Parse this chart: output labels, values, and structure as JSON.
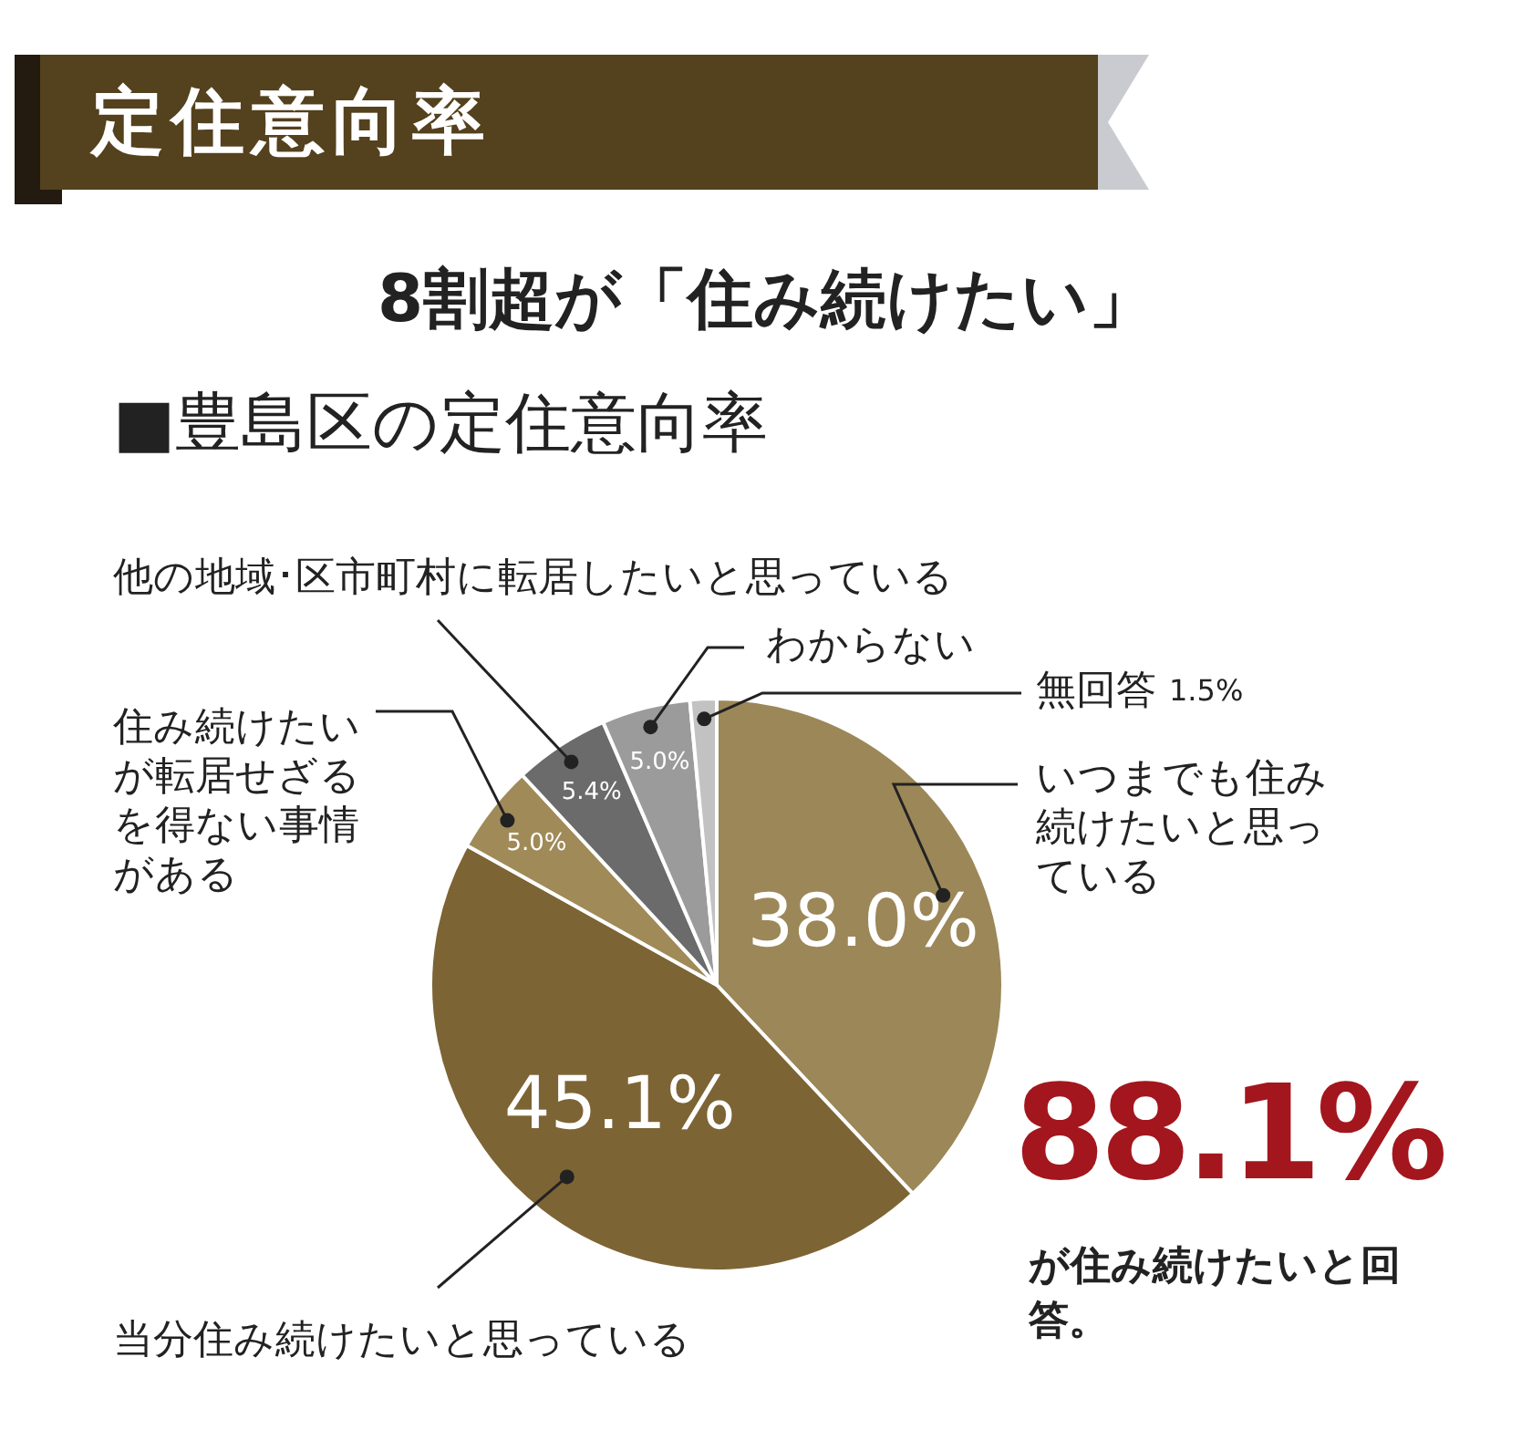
{
  "chart_data": {
    "type": "pie",
    "title": "定住意向率",
    "subtitle": "8割超が「住み続けたい」",
    "annotations": [
      "■豊島区の定住意向率",
      "88.1%",
      "が住み続けたいと回答。"
    ],
    "categories": [
      "いつまでも住み続けたいと思っている",
      "当分住み続けたいと思っている",
      "住み続けたいが転居せざるを得ない事情がある",
      "他の地域･区市町村に転居したいと思っている",
      "わからない",
      "無回答"
    ],
    "values": [
      38.0,
      45.1,
      5.0,
      5.4,
      5.0,
      1.5
    ],
    "value_labels": [
      "38.0%",
      "45.1%",
      "5.0%",
      "5.4%",
      "5.0%",
      "1.5%"
    ],
    "colors": [
      "#9c8758",
      "#7d6434",
      "#a08a58",
      "#6b6b6b",
      "#9b9b9b",
      "#c2c2c2"
    ],
    "legend": false
  }
}
